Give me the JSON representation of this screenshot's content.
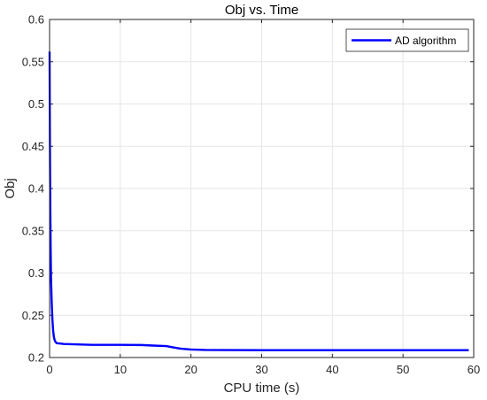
{
  "chart_data": {
    "type": "line",
    "title": "Obj vs. Time",
    "xlabel": "CPU time (s)",
    "ylabel": "Obj",
    "xlim": [
      0,
      60
    ],
    "ylim": [
      0.2,
      0.6
    ],
    "xticks": [
      0,
      10,
      20,
      30,
      40,
      50,
      60
    ],
    "yticks": [
      0.2,
      0.25,
      0.3,
      0.35,
      0.4,
      0.45,
      0.5,
      0.55,
      0.6
    ],
    "xtick_labels": [
      "0",
      "10",
      "20",
      "30",
      "40",
      "50",
      "60"
    ],
    "ytick_labels": [
      "0.2",
      "0.25",
      "0.3",
      "0.35",
      "0.4",
      "0.45",
      "0.5",
      "0.55",
      "0.6"
    ],
    "grid": true,
    "legend_position": "top-right",
    "line_color": "#0000ff",
    "series": [
      {
        "name": "AD algorithm",
        "x": [
          0,
          0.05,
          0.1,
          0.15,
          0.2,
          0.3,
          0.4,
          0.5,
          0.6,
          0.7,
          0.8,
          1.0,
          1.5,
          2,
          4,
          6,
          10,
          13,
          15,
          16.5,
          17.5,
          18.5,
          20,
          22,
          25,
          30,
          40,
          50,
          59.3
        ],
        "y": [
          0.562,
          0.45,
          0.38,
          0.33,
          0.295,
          0.265,
          0.245,
          0.232,
          0.225,
          0.221,
          0.219,
          0.217,
          0.2165,
          0.216,
          0.2155,
          0.215,
          0.215,
          0.2148,
          0.214,
          0.2135,
          0.212,
          0.2105,
          0.2095,
          0.209,
          0.2088,
          0.2087,
          0.2087,
          0.2087,
          0.2087
        ]
      }
    ]
  }
}
